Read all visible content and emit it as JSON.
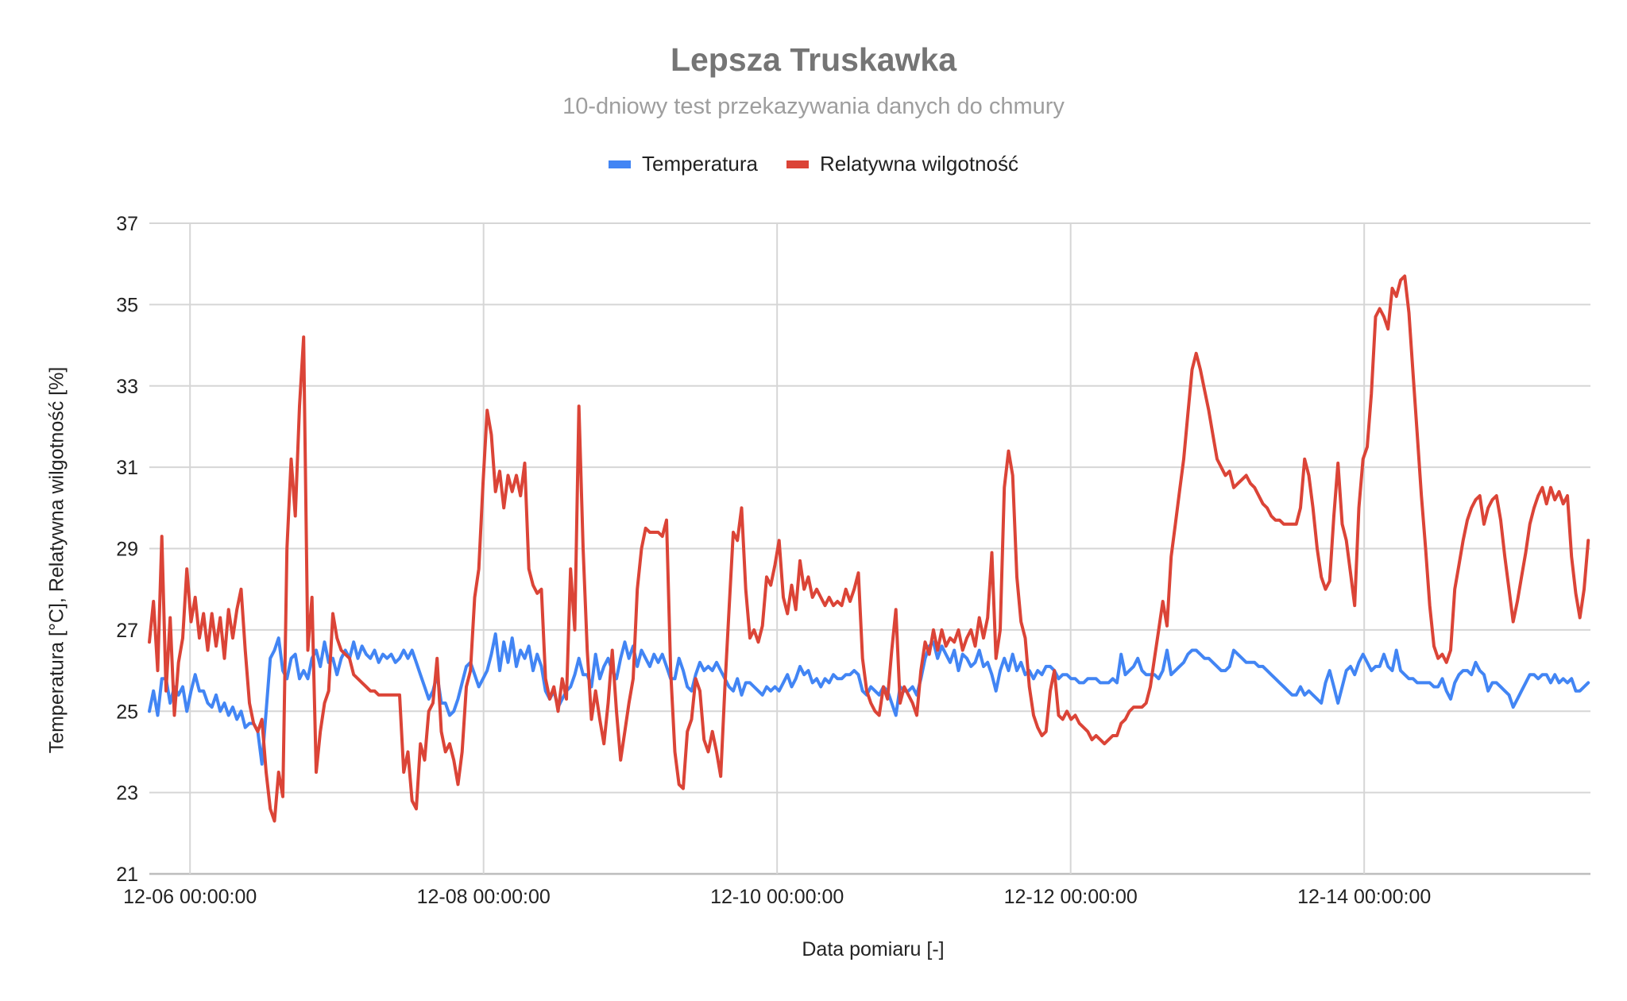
{
  "chart_data": {
    "type": "line",
    "title": "Lepsza Truskawka",
    "subtitle": "10-dniowy test przekazywania danych do chmury",
    "xlabel": "Data pomiaru [-]",
    "ylabel": "Temperatura [°C], Relatywna wilgotność [%]",
    "ylim": [
      21,
      37
    ],
    "yticks": [
      21,
      23,
      25,
      27,
      29,
      31,
      33,
      35,
      37
    ],
    "x_unit": "hours since 12-06 00:00:00",
    "xlim": [
      -6.65,
      229.0
    ],
    "xticks": [
      {
        "hours": 0,
        "label": "12-06 00:00:00"
      },
      {
        "hours": 48,
        "label": "12-08 00:00:00"
      },
      {
        "hours": 96,
        "label": "12-10 00:00:00"
      },
      {
        "hours": 144,
        "label": "12-12 00:00:00"
      },
      {
        "hours": 192,
        "label": "12-14 00:00:00"
      }
    ],
    "grid": true,
    "legend_position": "top",
    "x_start_hours": -6.65,
    "x_step_hours": 0.682,
    "series": [
      {
        "name": "Temperatura",
        "color": "#4285f4",
        "values": [
          25.0,
          25.5,
          24.9,
          25.8,
          25.8,
          25.2,
          25.6,
          25.4,
          25.6,
          25.0,
          25.5,
          25.9,
          25.5,
          25.5,
          25.2,
          25.1,
          25.4,
          25.0,
          25.2,
          24.9,
          25.1,
          24.8,
          25.0,
          24.6,
          24.7,
          24.7,
          24.5,
          23.7,
          25.0,
          26.3,
          26.5,
          26.8,
          26.0,
          25.8,
          26.3,
          26.4,
          25.8,
          26.0,
          25.8,
          26.3,
          26.5,
          26.1,
          26.7,
          26.2,
          26.3,
          25.9,
          26.3,
          26.5,
          26.3,
          26.7,
          26.3,
          26.6,
          26.4,
          26.3,
          26.5,
          26.2,
          26.4,
          26.3,
          26.4,
          26.2,
          26.3,
          26.5,
          26.3,
          26.5,
          26.2,
          25.9,
          25.6,
          25.3,
          25.5,
          25.9,
          25.2,
          25.2,
          24.9,
          25.0,
          25.3,
          25.7,
          26.1,
          26.2,
          25.9,
          25.6,
          25.8,
          26.0,
          26.4,
          26.9,
          26.0,
          26.7,
          26.2,
          26.8,
          26.1,
          26.5,
          26.3,
          26.6,
          26.0,
          26.4,
          26.1,
          25.5,
          25.3,
          25.5,
          25.1,
          25.3,
          25.5,
          25.6,
          25.9,
          26.3,
          25.9,
          25.9,
          25.6,
          26.4,
          25.8,
          26.1,
          26.3,
          26.0,
          25.8,
          26.3,
          26.7,
          26.3,
          26.6,
          26.1,
          26.5,
          26.3,
          26.1,
          26.4,
          26.2,
          26.4,
          26.1,
          25.8,
          25.8,
          26.3,
          26.0,
          25.6,
          25.5,
          25.9,
          26.2,
          26.0,
          26.1,
          26.0,
          26.2,
          26.0,
          25.8,
          25.6,
          25.5,
          25.8,
          25.4,
          25.7,
          25.7,
          25.6,
          25.5,
          25.4,
          25.6,
          25.5,
          25.6,
          25.5,
          25.7,
          25.9,
          25.6,
          25.8,
          26.1,
          25.9,
          26.0,
          25.7,
          25.8,
          25.6,
          25.8,
          25.7,
          25.9,
          25.8,
          25.8,
          25.9,
          25.9,
          26.0,
          25.9,
          25.5,
          25.4,
          25.6,
          25.5,
          25.4,
          25.6,
          25.5,
          25.2,
          24.9,
          25.6,
          25.5,
          25.5,
          25.6,
          25.4,
          25.8,
          26.3,
          26.6,
          26.7,
          26.3,
          26.6,
          26.4,
          26.2,
          26.5,
          26.0,
          26.4,
          26.3,
          26.1,
          26.2,
          26.5,
          26.1,
          26.2,
          25.9,
          25.5,
          26.0,
          26.3,
          26.0,
          26.4,
          26.0,
          26.2,
          25.9,
          26.0,
          25.8,
          26.0,
          25.9,
          26.1,
          26.1,
          26.0,
          25.8,
          25.9,
          25.9,
          25.8,
          25.8,
          25.7,
          25.7,
          25.8,
          25.8,
          25.8,
          25.7,
          25.7,
          25.7,
          25.8,
          25.7,
          26.4,
          25.9,
          26.0,
          26.1,
          26.3,
          26.0,
          25.9,
          25.9,
          25.9,
          25.8,
          26.0,
          26.5,
          25.9,
          26.0,
          26.1,
          26.2,
          26.4,
          26.5,
          26.5,
          26.4,
          26.3,
          26.3,
          26.2,
          26.1,
          26.0,
          26.0,
          26.1,
          26.5,
          26.4,
          26.3,
          26.2,
          26.2,
          26.2,
          26.1,
          26.1,
          26.0,
          25.9,
          25.8,
          25.7,
          25.6,
          25.5,
          25.4,
          25.4,
          25.6,
          25.4,
          25.5,
          25.4,
          25.3,
          25.2,
          25.7,
          26.0,
          25.6,
          25.2,
          25.6,
          26.0,
          26.1,
          25.9,
          26.2,
          26.4,
          26.2,
          26.0,
          26.1,
          26.1,
          26.4,
          26.1,
          26.0,
          26.5,
          26.0,
          25.9,
          25.8,
          25.8,
          25.7,
          25.7,
          25.7,
          25.7,
          25.6,
          25.6,
          25.8,
          25.5,
          25.3,
          25.7,
          25.9,
          26.0,
          26.0,
          25.9,
          26.2,
          26.0,
          25.9,
          25.5,
          25.7,
          25.7,
          25.6,
          25.5,
          25.4,
          25.1,
          25.3,
          25.5,
          25.7,
          25.9,
          25.9,
          25.8,
          25.9,
          25.9,
          25.7,
          25.9,
          25.7,
          25.8,
          25.7,
          25.8,
          25.5,
          25.5,
          25.6,
          25.7
        ]
      },
      {
        "name": "Relatywna wilgotność",
        "color": "#db4437",
        "values": [
          26.7,
          27.7,
          26.0,
          29.3,
          25.5,
          27.3,
          24.9,
          26.2,
          26.8,
          28.5,
          27.2,
          27.8,
          26.8,
          27.4,
          26.5,
          27.4,
          26.6,
          27.3,
          26.3,
          27.5,
          26.8,
          27.5,
          28.0,
          26.5,
          25.2,
          24.7,
          24.5,
          24.8,
          23.5,
          22.6,
          22.3,
          23.5,
          22.9,
          29.0,
          31.2,
          29.8,
          32.5,
          34.2,
          26.5,
          27.8,
          23.5,
          24.5,
          25.2,
          25.5,
          27.4,
          26.8,
          26.5,
          26.4,
          26.3,
          25.9,
          25.8,
          25.7,
          25.6,
          25.5,
          25.5,
          25.4,
          25.4,
          25.4,
          25.4,
          25.4,
          25.4,
          23.5,
          24.0,
          22.8,
          22.6,
          24.2,
          23.8,
          25.0,
          25.2,
          26.3,
          24.5,
          24.0,
          24.2,
          23.8,
          23.2,
          24.0,
          25.6,
          26.0,
          27.8,
          28.5,
          30.6,
          32.4,
          31.8,
          30.4,
          30.9,
          30.0,
          30.8,
          30.4,
          30.8,
          30.3,
          31.1,
          28.5,
          28.1,
          27.9,
          28.0,
          25.8,
          25.3,
          25.6,
          25.0,
          25.8,
          25.3,
          28.5,
          27.0,
          32.5,
          29.0,
          26.5,
          24.8,
          25.5,
          24.8,
          24.2,
          25.2,
          26.5,
          25.0,
          23.8,
          24.5,
          25.2,
          25.8,
          28.0,
          29.0,
          29.5,
          29.4,
          29.4,
          29.4,
          29.3,
          29.7,
          26.0,
          24.0,
          23.2,
          23.1,
          24.5,
          24.8,
          25.8,
          25.5,
          24.3,
          24.0,
          24.5,
          24.0,
          23.4,
          25.6,
          27.5,
          29.4,
          29.2,
          30.0,
          28.0,
          26.8,
          27.0,
          26.7,
          27.1,
          28.3,
          28.1,
          28.6,
          29.2,
          27.8,
          27.4,
          28.1,
          27.5,
          28.7,
          28.0,
          28.3,
          27.8,
          28.0,
          27.8,
          27.6,
          27.8,
          27.6,
          27.7,
          27.6,
          28.0,
          27.7,
          28.0,
          28.4,
          26.3,
          25.5,
          25.2,
          25.0,
          24.9,
          25.6,
          25.3,
          26.5,
          27.5,
          25.2,
          25.6,
          25.4,
          25.2,
          24.9,
          26.0,
          26.7,
          26.4,
          27.0,
          26.5,
          27.0,
          26.6,
          26.8,
          26.7,
          27.0,
          26.5,
          26.8,
          27.0,
          26.6,
          27.3,
          26.8,
          27.3,
          28.9,
          26.3,
          27.0,
          30.5,
          31.4,
          30.8,
          28.3,
          27.2,
          26.8,
          25.6,
          24.9,
          24.6,
          24.4,
          24.5,
          25.5,
          26.0,
          24.9,
          24.8,
          25.0,
          24.8,
          24.9,
          24.7,
          24.6,
          24.5,
          24.3,
          24.4,
          24.3,
          24.2,
          24.3,
          24.4,
          24.4,
          24.7,
          24.8,
          25.0,
          25.1,
          25.1,
          25.1,
          25.2,
          25.6,
          26.3,
          27.0,
          27.7,
          27.1,
          28.8,
          29.6,
          30.4,
          31.2,
          32.3,
          33.4,
          33.8,
          33.4,
          32.9,
          32.4,
          31.8,
          31.2,
          31.0,
          30.8,
          30.9,
          30.5,
          30.6,
          30.7,
          30.8,
          30.6,
          30.5,
          30.3,
          30.1,
          30.0,
          29.8,
          29.7,
          29.7,
          29.6,
          29.6,
          29.6,
          29.6,
          30.0,
          31.2,
          30.8,
          30.0,
          29.0,
          28.3,
          28.0,
          28.2,
          29.8,
          31.1,
          29.6,
          29.2,
          28.4,
          27.6,
          30.0,
          31.2,
          31.5,
          32.8,
          34.7,
          34.9,
          34.7,
          34.4,
          35.4,
          35.2,
          35.6,
          35.7,
          34.8,
          33.3,
          31.8,
          30.3,
          29.0,
          27.6,
          26.6,
          26.3,
          26.4,
          26.2,
          26.5,
          28.0,
          28.6,
          29.2,
          29.7,
          30.0,
          30.2,
          30.3,
          29.6,
          30.0,
          30.2,
          30.3,
          29.7,
          28.8,
          28.0,
          27.2,
          27.7,
          28.3,
          28.9,
          29.6,
          30.0,
          30.3,
          30.5,
          30.1,
          30.5,
          30.2,
          30.4,
          30.1,
          30.3,
          28.8,
          27.9,
          27.3,
          28.0,
          29.2
        ]
      }
    ]
  }
}
